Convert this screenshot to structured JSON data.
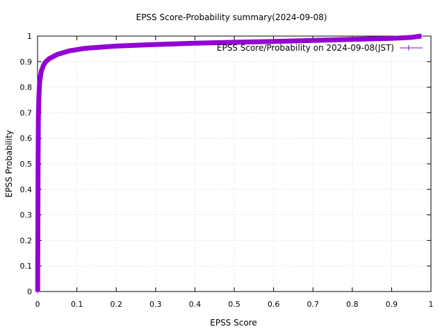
{
  "chart_data": {
    "type": "line",
    "title": "EPSS Score-Probability summary(2024-09-08)",
    "xlabel": "EPSS Score",
    "ylabel": "EPSS Probability",
    "xlim": [
      0,
      1
    ],
    "ylim": [
      0,
      1
    ],
    "x_ticks": [
      "0",
      "0.1",
      "0.2",
      "0.3",
      "0.4",
      "0.5",
      "0.6",
      "0.7",
      "0.8",
      "0.9",
      "1"
    ],
    "y_ticks": [
      "0",
      "0.1",
      "0.2",
      "0.3",
      "0.4",
      "0.5",
      "0.6",
      "0.7",
      "0.8",
      "0.9",
      "1"
    ],
    "grid": true,
    "legend_position": "top-right",
    "series": [
      {
        "name": "EPSS Score/Probability on 2024-09-08(JST)",
        "color": "#9400d3",
        "marker": "plus",
        "points": [
          [
            0.0004,
            0.0
          ],
          [
            0.0004,
            0.05
          ],
          [
            0.0005,
            0.11
          ],
          [
            0.0006,
            0.14
          ],
          [
            0.0007,
            0.17
          ],
          [
            0.0008,
            0.2
          ],
          [
            0.0009,
            0.25
          ],
          [
            0.001,
            0.3
          ],
          [
            0.0011,
            0.35
          ],
          [
            0.0012,
            0.4
          ],
          [
            0.0013,
            0.45
          ],
          [
            0.0014,
            0.5
          ],
          [
            0.0016,
            0.55
          ],
          [
            0.0018,
            0.6
          ],
          [
            0.002,
            0.66
          ],
          [
            0.0025,
            0.7
          ],
          [
            0.003,
            0.74
          ],
          [
            0.004,
            0.78
          ],
          [
            0.005,
            0.81
          ],
          [
            0.007,
            0.84
          ],
          [
            0.01,
            0.865
          ],
          [
            0.015,
            0.885
          ],
          [
            0.02,
            0.898
          ],
          [
            0.03,
            0.912
          ],
          [
            0.05,
            0.928
          ],
          [
            0.08,
            0.942
          ],
          [
            0.12,
            0.952
          ],
          [
            0.2,
            0.961
          ],
          [
            0.3,
            0.967
          ],
          [
            0.4,
            0.972
          ],
          [
            0.5,
            0.976
          ],
          [
            0.6,
            0.979
          ],
          [
            0.7,
            0.983
          ],
          [
            0.8,
            0.987
          ],
          [
            0.9,
            0.991
          ],
          [
            0.95,
            0.995
          ],
          [
            0.975,
            1.0
          ]
        ]
      }
    ]
  }
}
